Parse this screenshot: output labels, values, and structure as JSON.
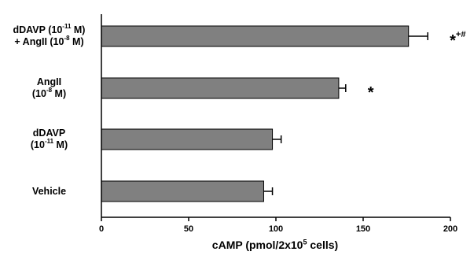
{
  "chart_data": {
    "type": "bar",
    "orientation": "horizontal",
    "categories": [
      {
        "l1": "dDAVP (10",
        "s1": "-11",
        "e1": " M)",
        "l2": "+ AngII (10",
        "s2": "-8",
        "e2": " M)"
      },
      {
        "l1": "AngII",
        "s1": "",
        "e1": "",
        "l2": "(10",
        "s2": "-8",
        "e2": " M)"
      },
      {
        "l1": "dDAVP",
        "s1": "",
        "e1": "",
        "l2": "(10",
        "s2": "-11",
        "e2": " M)"
      },
      {
        "l1": "Vehicle",
        "s1": "",
        "e1": "",
        "l2": "",
        "s2": "",
        "e2": ""
      }
    ],
    "values": [
      176,
      136,
      98,
      93
    ],
    "errors": [
      11,
      4,
      5,
      5
    ],
    "annotations": [
      {
        "mark": "*",
        "sup": "+#"
      },
      {
        "mark": "*",
        "sup": ""
      },
      {
        "mark": "",
        "sup": ""
      },
      {
        "mark": "",
        "sup": ""
      }
    ],
    "xlabel": {
      "pre": "cAMP (pmol/2x10",
      "sup": "5",
      "post": " cells)"
    },
    "xlim": [
      0,
      200
    ],
    "xticks": [
      "0",
      "50",
      "100",
      "150",
      "200"
    ],
    "bar_color": "#808080",
    "grid": false
  }
}
